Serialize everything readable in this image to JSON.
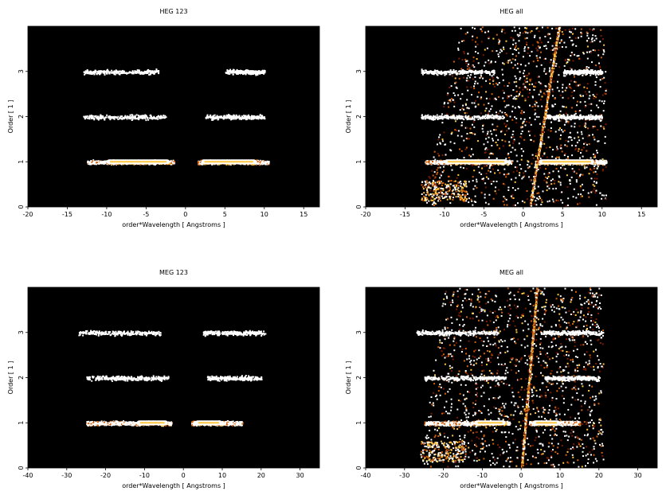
{
  "chart_data": [
    {
      "type": "heatmap",
      "title": "HEG 123",
      "xlabel": "order*Wavelength [ Angstroms ]",
      "ylabel": "Order [ 1 ]",
      "xlim": [
        -20,
        17
      ],
      "ylim": [
        0,
        4
      ],
      "xticks": [
        -20,
        -15,
        -10,
        -5,
        0,
        5,
        10,
        15
      ],
      "yticks": [
        0,
        1,
        2,
        3
      ],
      "colormap": [
        "#000000",
        "#7a1a00",
        "#d2600a",
        "#ffc640",
        "#ffffff"
      ],
      "bands": [
        {
          "order": 1,
          "x": [
            -12.5,
            -1.5
          ],
          "core": [
            -10,
            -2
          ],
          "intensity": "high"
        },
        {
          "order": 1,
          "x": [
            1.5,
            10.5
          ],
          "core": [
            2,
            9
          ],
          "intensity": "high"
        },
        {
          "order": 2,
          "x": [
            -13,
            -2.5
          ],
          "intensity": "low"
        },
        {
          "order": 2,
          "x": [
            2.5,
            10
          ],
          "intensity": "low"
        },
        {
          "order": 3,
          "x": [
            -13,
            -3.5
          ],
          "intensity": "low"
        },
        {
          "order": 3,
          "x": [
            5,
            10
          ],
          "intensity": "low"
        }
      ]
    },
    {
      "type": "heatmap",
      "title": "HEG all",
      "xlabel": "order*Wavelength [ Angstroms ]",
      "ylabel": "Order [ 1 ]",
      "xlim": [
        -20,
        17
      ],
      "ylim": [
        0,
        4
      ],
      "xticks": [
        -20,
        -15,
        -10,
        -5,
        0,
        5,
        10,
        15
      ],
      "yticks": [
        0,
        1,
        2,
        3
      ],
      "colormap": [
        "#000000",
        "#7a1a00",
        "#d2600a",
        "#ffc640",
        "#ffffff"
      ],
      "bands": [
        {
          "order": 1,
          "x": [
            -12.5,
            -1.5
          ],
          "core": [
            -10,
            -2
          ],
          "intensity": "high"
        },
        {
          "order": 1,
          "x": [
            1.5,
            10.5
          ],
          "core": [
            2,
            9
          ],
          "intensity": "high"
        },
        {
          "order": 2,
          "x": [
            -13,
            -2.5
          ],
          "intensity": "low"
        },
        {
          "order": 2,
          "x": [
            2.5,
            10
          ],
          "intensity": "low"
        },
        {
          "order": 3,
          "x": [
            -13,
            -3.5
          ],
          "intensity": "low"
        },
        {
          "order": 3,
          "x": [
            5,
            10
          ],
          "intensity": "low"
        }
      ],
      "streak": {
        "x_at_order0": 0.8,
        "x_at_order4": 4.5
      },
      "background_region": {
        "x_at_order0": [
          -13,
          10.5
        ],
        "x_at_order4": [
          -8,
          10.5
        ]
      }
    },
    {
      "type": "heatmap",
      "title": "MEG 123",
      "xlabel": "order*Wavelength [ Angstroms ]",
      "ylabel": "Order [ 1 ]",
      "xlim": [
        -40,
        35
      ],
      "ylim": [
        0,
        4
      ],
      "xticks": [
        -40,
        -30,
        -20,
        -10,
        0,
        10,
        20,
        30
      ],
      "yticks": [
        0,
        1,
        2,
        3
      ],
      "colormap": [
        "#000000",
        "#7a1a00",
        "#d2600a",
        "#ffc640",
        "#ffffff"
      ],
      "bands": [
        {
          "order": 1,
          "x": [
            -25,
            -3
          ],
          "core": [
            -12,
            -4
          ],
          "intensity": "high"
        },
        {
          "order": 1,
          "x": [
            2,
            15
          ],
          "core": [
            3,
            10
          ],
          "intensity": "high"
        },
        {
          "order": 2,
          "x": [
            -25,
            -4
          ],
          "intensity": "low"
        },
        {
          "order": 2,
          "x": [
            6,
            20
          ],
          "intensity": "low"
        },
        {
          "order": 3,
          "x": [
            -27,
            -6
          ],
          "intensity": "low"
        },
        {
          "order": 3,
          "x": [
            5,
            21
          ],
          "intensity": "low"
        }
      ]
    },
    {
      "type": "heatmap",
      "title": "MEG all",
      "xlabel": "order*Wavelength [ Angstroms ]",
      "ylabel": "Order [ 1 ]",
      "xlim": [
        -40,
        35
      ],
      "ylim": [
        0,
        4
      ],
      "xticks": [
        -40,
        -30,
        -20,
        -10,
        0,
        10,
        20,
        30
      ],
      "yticks": [
        0,
        1,
        2,
        3
      ],
      "colormap": [
        "#000000",
        "#7a1a00",
        "#d2600a",
        "#ffc640",
        "#ffffff"
      ],
      "bands": [
        {
          "order": 1,
          "x": [
            -25,
            -3
          ],
          "core": [
            -12,
            -4
          ],
          "intensity": "high"
        },
        {
          "order": 1,
          "x": [
            2,
            15
          ],
          "core": [
            3,
            10
          ],
          "intensity": "high"
        },
        {
          "order": 2,
          "x": [
            -25,
            -4
          ],
          "intensity": "low"
        },
        {
          "order": 2,
          "x": [
            6,
            20
          ],
          "intensity": "low"
        },
        {
          "order": 3,
          "x": [
            -27,
            -6
          ],
          "intensity": "low"
        },
        {
          "order": 3,
          "x": [
            5,
            21
          ],
          "intensity": "low"
        }
      ],
      "streak": {
        "x_at_order0": 0,
        "x_at_order4": 4
      },
      "background_region": {
        "x_at_order0": [
          -26,
          21
        ],
        "x_at_order4": [
          -20,
          21
        ]
      }
    }
  ]
}
